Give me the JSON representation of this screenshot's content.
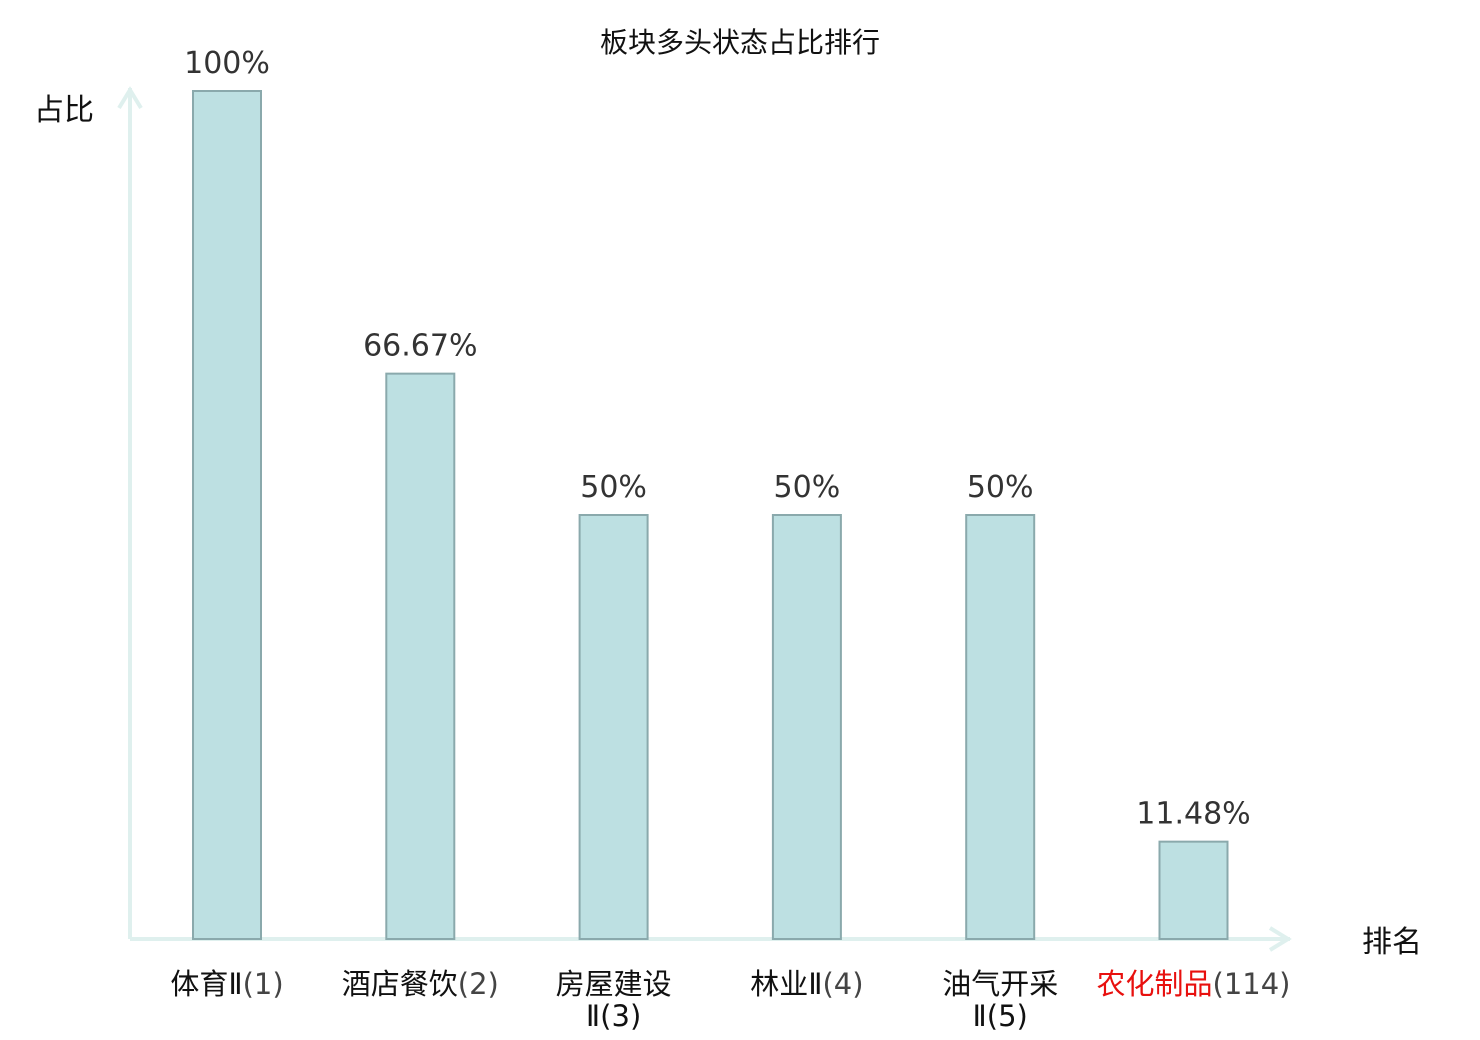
{
  "chart_data": {
    "type": "bar",
    "title": "板块多头状态占比排行",
    "xlabel": "排名",
    "ylabel": "占比",
    "ylim": [
      0,
      100
    ],
    "categories": [
      {
        "lines": [
          "体育Ⅱ",
          "(1)"
        ],
        "wrap": false,
        "highlight": false
      },
      {
        "lines": [
          "酒店餐饮",
          "(2)"
        ],
        "wrap": false,
        "highlight": false
      },
      {
        "lines": [
          "房屋建设",
          "Ⅱ(3)"
        ],
        "wrap": true,
        "highlight": false
      },
      {
        "lines": [
          "林业Ⅱ",
          "(4)"
        ],
        "wrap": false,
        "highlight": false
      },
      {
        "lines": [
          "油气开采",
          "Ⅱ(5)"
        ],
        "wrap": true,
        "highlight": false
      },
      {
        "lines": [
          "农化制品",
          "(114)"
        ],
        "wrap": false,
        "highlight": true
      }
    ],
    "values": [
      100,
      66.67,
      50,
      50,
      50,
      11.48
    ],
    "value_labels": [
      "100%",
      "66.67%",
      "50%",
      "50%",
      "50%",
      "11.48%"
    ],
    "grid": false,
    "colors": {
      "bar_fill": "#bde0e2",
      "bar_stroke": "#8aa9ac",
      "axis": "#dff0ee",
      "highlight_text": "#e8100e"
    }
  }
}
